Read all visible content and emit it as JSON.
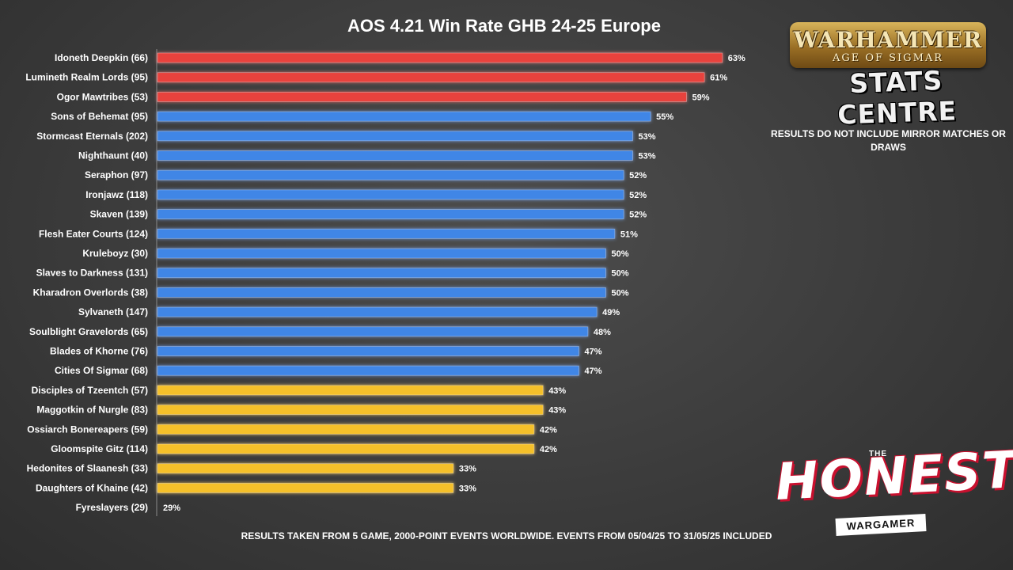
{
  "chart_data": {
    "type": "bar",
    "orientation": "horizontal",
    "title": "AOS 4.21 Win Rate GHB 24-25 Europe",
    "xlim": [
      0,
      100
    ],
    "value_unit": "%",
    "categories": [
      "Idoneth Deepkin (66)",
      "Lumineth Realm Lords (95)",
      "Ogor Mawtribes (53)",
      "Sons of Behemat (95)",
      "Stormcast Eternals (202)",
      "Nighthaunt (40)",
      "Seraphon (97)",
      "Ironjawz (118)",
      "Skaven (139)",
      "Flesh Eater Courts (124)",
      "Kruleboyz (30)",
      "Slaves to Darkness (131)",
      "Kharadron Overlords (38)",
      "Sylvaneth (147)",
      "Soulblight Gravelords (65)",
      "Blades of Khorne (76)",
      "Cities Of Sigmar (68)",
      "Disciples of Tzeentch (57)",
      "Maggotkin of Nurgle (83)",
      "Ossiarch Bonereapers (59)",
      "Gloomspite Gitz (114)",
      "Hedonites of Slaanesh (33)",
      "Daughters of Khaine (42)",
      "Fyreslayers (29)"
    ],
    "values": [
      63,
      61,
      59,
      55,
      53,
      53,
      52,
      52,
      52,
      51,
      50,
      50,
      50,
      49,
      48,
      47,
      47,
      43,
      43,
      42,
      42,
      33,
      33,
      29
    ],
    "bar_colors": [
      "#e8423c",
      "#e8423c",
      "#e8423c",
      "#3f86e6",
      "#3f86e6",
      "#3f86e6",
      "#3f86e6",
      "#3f86e6",
      "#3f86e6",
      "#3f86e6",
      "#3f86e6",
      "#3f86e6",
      "#3f86e6",
      "#3f86e6",
      "#3f86e6",
      "#3f86e6",
      "#3f86e6",
      "#f5c02a",
      "#f5c02a",
      "#f5c02a",
      "#f5c02a",
      "#f5c02a",
      "#f5c02a",
      "none"
    ]
  },
  "logos": {
    "warhammer_title": "WARHAMMER",
    "warhammer_subtitle": "AGE OF SIGMAR",
    "stats_centre": "STATS CENTRE",
    "honest_the": "THE",
    "honest_word": "HONEST",
    "honest_sub": "WARGAMER"
  },
  "note": "RESULTS DO NOT INCLUDE MIRROR MATCHES OR DRAWS",
  "footer": "RESULTS TAKEN FROM 5 GAME, 2000-POINT EVENTS WORLDWIDE. EVENTS FROM 05/04/25 TO 31/05/25 INCLUDED"
}
